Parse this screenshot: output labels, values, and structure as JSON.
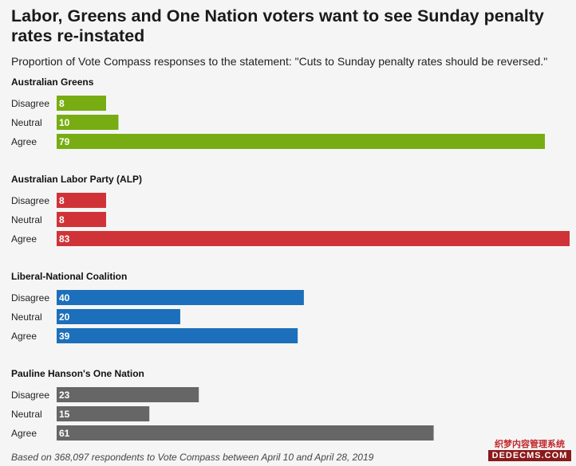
{
  "title": "Labor, Greens and One Nation voters want to see Sunday penalty rates re-instated",
  "subtitle": "Proportion of Vote Compass responses to the statement: \"Cuts to Sunday penalty rates should be reversed.\"",
  "footnote": "Based on 368,097 respondents to Vote Compass between April 10 and April 28, 2019",
  "watermark": {
    "top": "织梦内容管理系统",
    "bottom": "DEDECMS.COM"
  },
  "chart_data": {
    "type": "bar",
    "orientation": "horizontal",
    "categories": [
      "Disagree",
      "Neutral",
      "Agree"
    ],
    "panels": [
      {
        "name": "Australian Greens",
        "color": "#77ad12",
        "values": [
          8,
          10,
          79
        ]
      },
      {
        "name": "Australian Labor Party (ALP)",
        "color": "#cf3338",
        "values": [
          8,
          8,
          83
        ]
      },
      {
        "name": "Liberal-National Coalition",
        "color": "#1c6fba",
        "values": [
          40,
          20,
          39
        ]
      },
      {
        "name": "Pauline Hanson's One Nation",
        "color": "#666666",
        "values": [
          23,
          15,
          61
        ]
      }
    ],
    "xlim": [
      0,
      83
    ],
    "data_labels": true
  }
}
